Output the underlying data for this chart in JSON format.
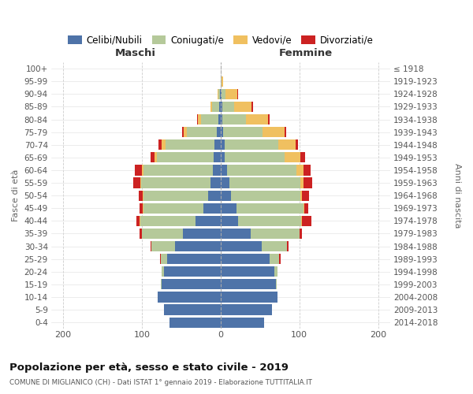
{
  "age_groups": [
    "0-4",
    "5-9",
    "10-14",
    "15-19",
    "20-24",
    "25-29",
    "30-34",
    "35-39",
    "40-44",
    "45-49",
    "50-54",
    "55-59",
    "60-64",
    "65-69",
    "70-74",
    "75-79",
    "80-84",
    "85-89",
    "90-94",
    "95-99",
    "100+"
  ],
  "birth_years": [
    "2014-2018",
    "2009-2013",
    "2004-2008",
    "1999-2003",
    "1994-1998",
    "1989-1993",
    "1984-1988",
    "1979-1983",
    "1974-1978",
    "1969-1973",
    "1964-1968",
    "1959-1963",
    "1954-1958",
    "1949-1953",
    "1944-1948",
    "1939-1943",
    "1934-1938",
    "1929-1933",
    "1924-1928",
    "1919-1923",
    "≤ 1918"
  ],
  "colors": {
    "celibi": "#4e73a8",
    "coniugati": "#b5c99a",
    "vedovi": "#f0c060",
    "divorziati": "#cc2222"
  },
  "maschi": {
    "celibi": [
      65,
      72,
      80,
      75,
      72,
      68,
      58,
      48,
      32,
      22,
      16,
      13,
      10,
      9,
      8,
      5,
      3,
      2,
      1,
      0,
      0
    ],
    "coniugati": [
      0,
      0,
      0,
      1,
      3,
      8,
      30,
      52,
      70,
      76,
      82,
      88,
      88,
      72,
      62,
      38,
      22,
      9,
      2,
      0,
      0
    ],
    "vedovi": [
      0,
      0,
      0,
      0,
      0,
      0,
      0,
      0,
      1,
      1,
      1,
      1,
      2,
      3,
      5,
      4,
      4,
      2,
      1,
      0,
      0
    ],
    "divorziati": [
      0,
      0,
      0,
      0,
      0,
      1,
      1,
      3,
      4,
      4,
      5,
      9,
      9,
      5,
      4,
      2,
      1,
      0,
      0,
      0,
      0
    ]
  },
  "femmine": {
    "celibi": [
      55,
      65,
      72,
      70,
      68,
      62,
      52,
      38,
      22,
      20,
      13,
      11,
      8,
      5,
      5,
      3,
      2,
      2,
      1,
      0,
      0
    ],
    "coniugati": [
      0,
      0,
      0,
      1,
      4,
      12,
      32,
      62,
      80,
      85,
      88,
      90,
      88,
      76,
      68,
      50,
      30,
      15,
      5,
      1,
      0
    ],
    "vedovi": [
      0,
      0,
      0,
      0,
      0,
      0,
      0,
      0,
      1,
      1,
      2,
      4,
      9,
      20,
      22,
      28,
      28,
      22,
      15,
      2,
      0
    ],
    "divorziati": [
      0,
      0,
      0,
      0,
      0,
      2,
      2,
      3,
      12,
      5,
      9,
      11,
      9,
      6,
      3,
      2,
      2,
      2,
      1,
      0,
      0
    ]
  },
  "xlim": 215,
  "xtick_vals": [
    -200,
    -100,
    0,
    100,
    200
  ],
  "title": "Popolazione per età, sesso e stato civile - 2019",
  "subtitle": "COMUNE DI MIGLIANICO (CH) - Dati ISTAT 1° gennaio 2019 - Elaborazione TUTTITALIA.IT",
  "ylabel_left": "Fasce di età",
  "ylabel_right": "Anni di nascita",
  "label_maschi": "Maschi",
  "label_femmine": "Femmine",
  "legend_labels": [
    "Celibi/Nubili",
    "Coniugati/e",
    "Vedovi/e",
    "Divorziati/e"
  ],
  "bg_color": "#ffffff",
  "grid_color": "#cccccc"
}
